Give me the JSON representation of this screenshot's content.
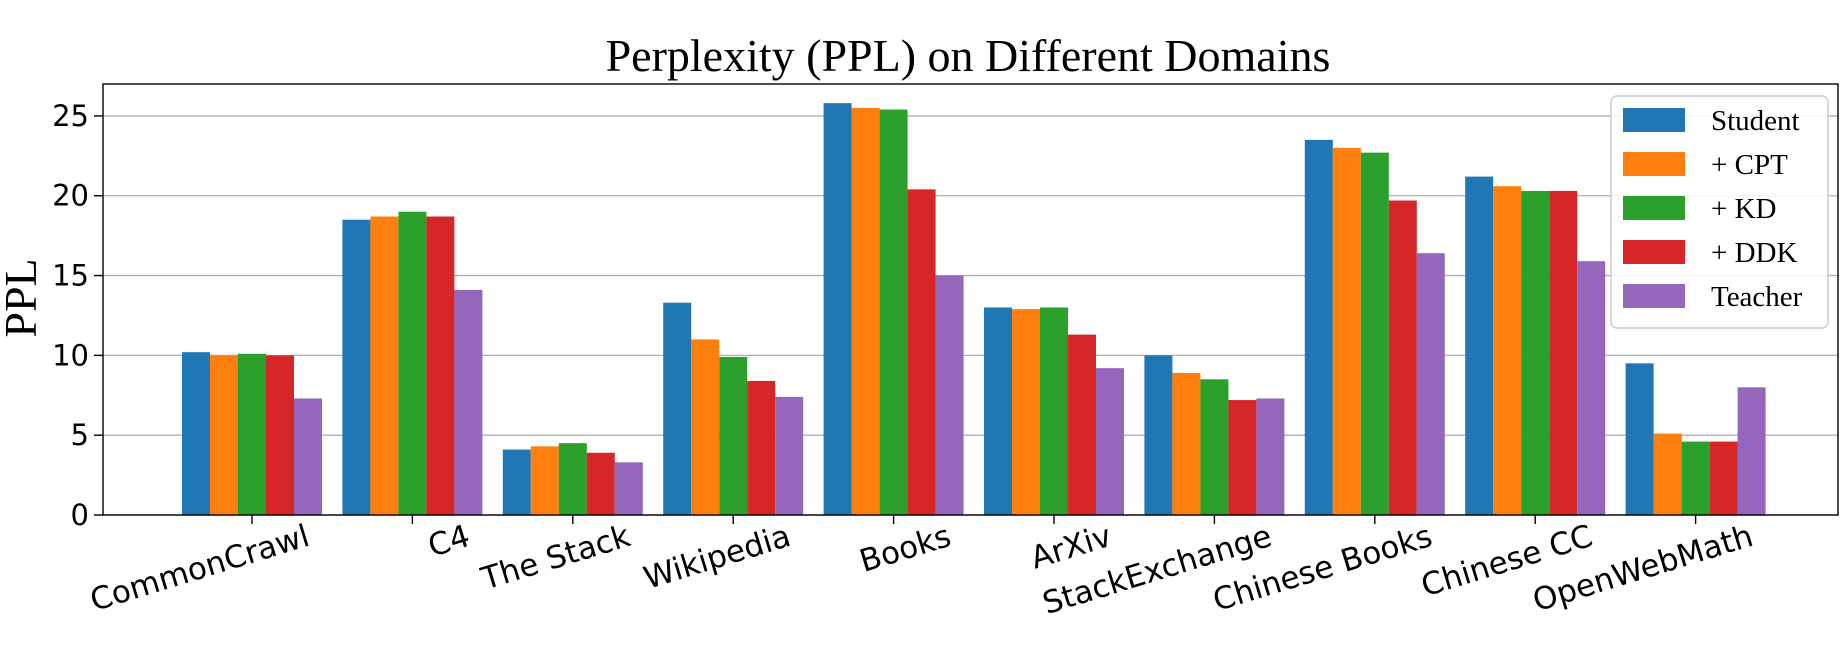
{
  "chart_data": {
    "type": "bar",
    "title": "Perplexity (PPL) on Different Domains",
    "xlabel": "",
    "ylabel": "PPL",
    "ylim": [
      0,
      27
    ],
    "yticks": [
      0,
      5,
      10,
      15,
      20,
      25
    ],
    "grid": "y",
    "legend_position": "top-right",
    "categories": [
      "CommonCrawl",
      "C4",
      "The Stack",
      "Wikipedia",
      "Books",
      "ArXiv",
      "StackExchange",
      "Chinese Books",
      "Chinese CC",
      "OpenWebMath"
    ],
    "series": [
      {
        "name": "Student",
        "color": "#1f77b4",
        "values": [
          10.2,
          18.5,
          4.1,
          13.3,
          25.8,
          13.0,
          10.0,
          23.5,
          21.2,
          9.5
        ]
      },
      {
        "name": "+ CPT",
        "color": "#ff7f0e",
        "values": [
          10.0,
          18.7,
          4.3,
          11.0,
          25.5,
          12.9,
          8.9,
          23.0,
          20.6,
          5.1
        ]
      },
      {
        "name": "+ KD",
        "color": "#2ca02c",
        "values": [
          10.1,
          19.0,
          4.5,
          9.9,
          25.4,
          13.0,
          8.5,
          22.7,
          20.3,
          4.6
        ]
      },
      {
        "name": "+ DDK",
        "color": "#d62728",
        "values": [
          10.0,
          18.7,
          3.9,
          8.4,
          20.4,
          11.3,
          7.2,
          19.7,
          20.3,
          4.6
        ]
      },
      {
        "name": "Teacher",
        "color": "#9467bd",
        "values": [
          7.3,
          14.1,
          3.3,
          7.4,
          15.0,
          9.2,
          7.3,
          16.4,
          15.9,
          8.0
        ]
      }
    ]
  }
}
